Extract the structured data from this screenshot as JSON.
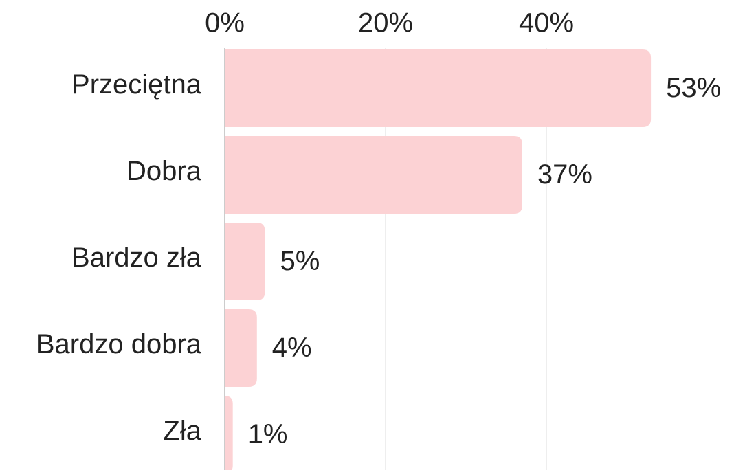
{
  "chart_data": {
    "type": "bar",
    "orientation": "horizontal",
    "categories": [
      "Przeciętna",
      "Dobra",
      "Bardzo zła",
      "Bardzo dobra",
      "Zła"
    ],
    "values": [
      53,
      37,
      5,
      4,
      1
    ],
    "value_labels": [
      "53%",
      "37%",
      "5%",
      "4%",
      "1%"
    ],
    "color": "#fcd2d4",
    "xlim": [
      0,
      60
    ],
    "xticks": [
      {
        "value": 0,
        "label": "0%"
      },
      {
        "value": 20,
        "label": "20%"
      },
      {
        "value": 40,
        "label": "40%"
      }
    ],
    "grid": true
  }
}
